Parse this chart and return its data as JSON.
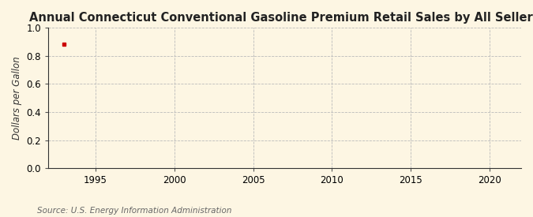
{
  "title": "Annual Connecticut Conventional Gasoline Premium Retail Sales by All Sellers",
  "ylabel": "Dollars per Gallon",
  "source": "Source: U.S. Energy Information Administration",
  "background_color": "#fdf6e3",
  "plot_bg_color": "#fdf6e3",
  "data_x": [
    1993
  ],
  "data_y": [
    0.883
  ],
  "dot_color": "#cc0000",
  "dot_size": 8,
  "xlim": [
    1992,
    2022
  ],
  "ylim": [
    0.0,
    1.0
  ],
  "xticks": [
    1995,
    2000,
    2005,
    2010,
    2015,
    2020
  ],
  "yticks": [
    0.0,
    0.2,
    0.4,
    0.6,
    0.8,
    1.0
  ],
  "grid_color": "#bbbbbb",
  "grid_linestyle": "--",
  "grid_linewidth": 0.6,
  "title_fontsize": 10.5,
  "ylabel_fontsize": 8.5,
  "tick_fontsize": 8.5,
  "source_fontsize": 7.5
}
